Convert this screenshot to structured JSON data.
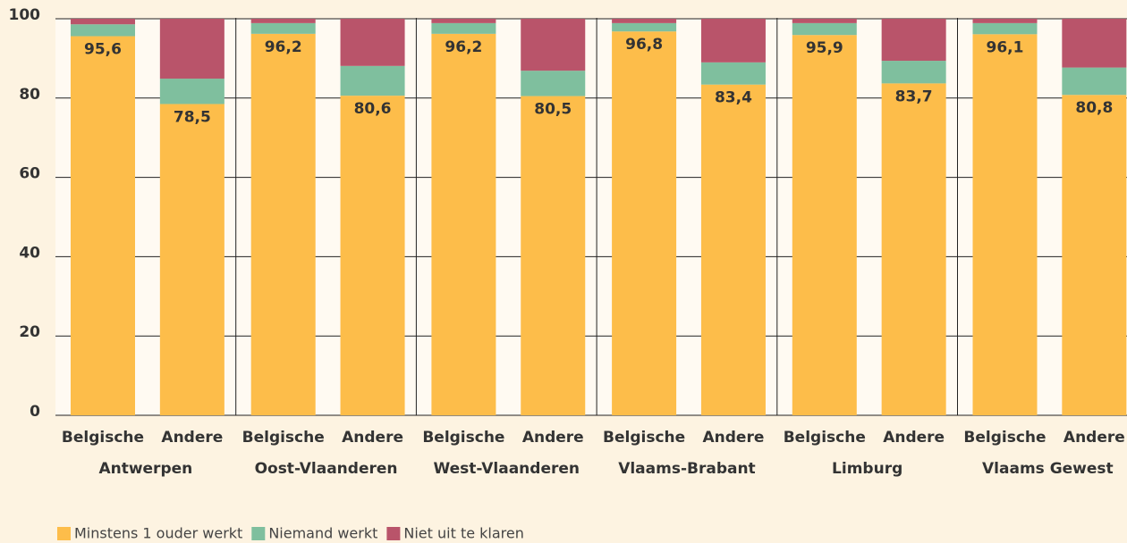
{
  "chart_data": {
    "type": "stacked-bar",
    "categories": [
      "Belgische",
      "Andere",
      "Belgische",
      "Andere",
      "Belgische",
      "Andere",
      "Belgische",
      "Andere",
      "Belgische",
      "Andere",
      "Belgische",
      "Andere"
    ],
    "groups": [
      "Antwerpen",
      "Oost-Vlaanderen",
      "West-Vlaanderen",
      "Vlaams-Brabant",
      "Limburg",
      "Vlaams Gewest"
    ],
    "series": [
      {
        "name": "Minstens 1 ouder werkt",
        "color": "#fdbd4a",
        "values": [
          95.6,
          78.5,
          96.2,
          80.6,
          96.2,
          80.5,
          96.8,
          83.4,
          95.9,
          83.7,
          96.1,
          80.8
        ],
        "value_labels": [
          "95,6",
          "78,5",
          "96,2",
          "80,6",
          "96,2",
          "80,5",
          "96,8",
          "83,4",
          "95,9",
          "83,7",
          "96,1",
          "80,8"
        ]
      },
      {
        "name": "Niemand werkt",
        "color": "#7fbf9e",
        "values": [
          3.0,
          6.4,
          2.7,
          7.5,
          2.7,
          6.4,
          2.1,
          5.6,
          3.0,
          5.7,
          2.8,
          6.9
        ]
      },
      {
        "name": "Niet uit te klaren",
        "color": "#b9546a",
        "values": [
          1.4,
          15.1,
          1.1,
          11.9,
          1.1,
          13.1,
          1.1,
          11.0,
          1.1,
          10.6,
          1.1,
          12.3
        ]
      }
    ],
    "ylim": [
      0,
      100
    ],
    "yticks": [
      0,
      20,
      40,
      60,
      80,
      100
    ],
    "grid": true
  }
}
